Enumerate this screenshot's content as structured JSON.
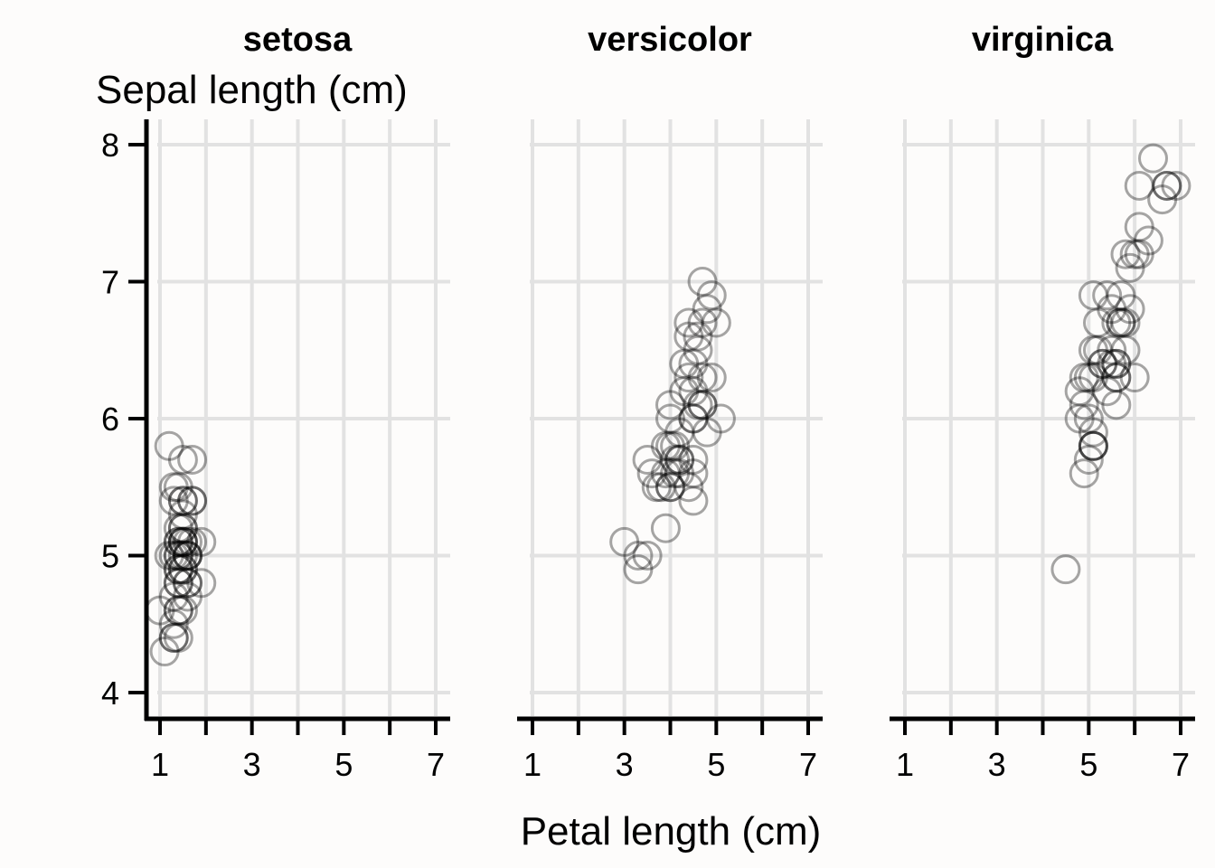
{
  "chart_data": {
    "type": "scatter",
    "facets": [
      "setosa",
      "versicolor",
      "virginica"
    ],
    "xlabel": "Petal length (cm)",
    "ylabel": "Sepal length (cm)",
    "xlim": [
      0.7,
      7.2
    ],
    "ylim": [
      3.83,
      8.2
    ],
    "xticks": [
      1,
      2,
      3,
      4,
      5,
      6,
      7
    ],
    "xtick_labels": [
      "1",
      "",
      "3",
      "",
      "5",
      "",
      "7"
    ],
    "yticks": [
      4,
      5,
      6,
      7,
      8
    ],
    "ytick_labels": [
      "4",
      "5",
      "6",
      "7",
      "8"
    ],
    "grid": true,
    "marker": "open-circle",
    "marker_color": "#000000",
    "series": [
      {
        "name": "setosa",
        "x": [
          1.4,
          1.4,
          1.3,
          1.5,
          1.4,
          1.7,
          1.4,
          1.5,
          1.4,
          1.5,
          1.5,
          1.6,
          1.4,
          1.1,
          1.2,
          1.5,
          1.3,
          1.4,
          1.7,
          1.5,
          1.7,
          1.5,
          1.0,
          1.7,
          1.9,
          1.6,
          1.6,
          1.5,
          1.4,
          1.6,
          1.6,
          1.5,
          1.5,
          1.4,
          1.5,
          1.2,
          1.3,
          1.4,
          1.3,
          1.5,
          1.3,
          1.3,
          1.3,
          1.6,
          1.9,
          1.4,
          1.6,
          1.4,
          1.5,
          1.4
        ],
        "y": [
          5.1,
          4.9,
          4.7,
          4.6,
          5.0,
          5.4,
          4.6,
          5.0,
          4.4,
          4.9,
          5.4,
          4.8,
          4.8,
          4.3,
          5.8,
          5.7,
          5.4,
          5.1,
          5.7,
          5.1,
          5.4,
          5.1,
          4.6,
          5.1,
          4.8,
          5.0,
          5.0,
          5.2,
          5.2,
          4.7,
          4.8,
          5.4,
          5.2,
          5.5,
          4.9,
          5.0,
          5.5,
          4.9,
          4.4,
          5.1,
          5.0,
          4.5,
          4.4,
          5.0,
          5.1,
          4.8,
          5.1,
          4.6,
          5.3,
          5.0
        ]
      },
      {
        "name": "versicolor",
        "x": [
          4.7,
          4.5,
          4.9,
          4.0,
          4.6,
          4.5,
          4.7,
          3.3,
          4.6,
          3.9,
          3.5,
          4.2,
          4.0,
          4.7,
          3.6,
          4.4,
          4.5,
          4.1,
          4.5,
          3.9,
          4.8,
          4.0,
          4.9,
          4.7,
          4.3,
          4.4,
          4.8,
          5.0,
          4.5,
          3.5,
          3.8,
          3.7,
          3.9,
          5.1,
          4.5,
          4.5,
          4.7,
          4.4,
          4.1,
          4.0,
          4.4,
          4.6,
          4.0,
          3.3,
          4.2,
          4.2,
          4.2,
          4.3,
          3.0,
          4.1
        ],
        "y": [
          7.0,
          6.4,
          6.9,
          5.5,
          6.5,
          5.7,
          6.3,
          4.9,
          6.6,
          5.2,
          5.0,
          5.9,
          6.0,
          6.1,
          5.6,
          6.7,
          5.6,
          5.8,
          6.2,
          5.6,
          5.9,
          6.1,
          6.3,
          6.1,
          6.4,
          6.6,
          6.8,
          6.7,
          6.0,
          5.7,
          5.5,
          5.5,
          5.8,
          6.0,
          5.4,
          6.0,
          6.7,
          6.3,
          5.6,
          5.5,
          5.5,
          6.1,
          5.8,
          5.0,
          5.6,
          5.7,
          5.7,
          6.2,
          5.1,
          5.7
        ]
      },
      {
        "name": "virginica",
        "x": [
          6.0,
          5.1,
          5.9,
          5.6,
          5.8,
          6.6,
          4.5,
          6.3,
          5.8,
          6.1,
          5.1,
          5.3,
          5.5,
          5.0,
          5.1,
          5.3,
          5.5,
          6.7,
          6.9,
          5.0,
          5.7,
          4.9,
          6.7,
          4.9,
          5.7,
          6.0,
          4.8,
          4.9,
          5.6,
          5.8,
          6.1,
          6.4,
          5.6,
          5.1,
          5.6,
          6.1,
          5.6,
          5.5,
          4.8,
          5.4,
          5.6,
          5.1,
          5.1,
          5.9,
          5.7,
          5.2,
          5.0,
          5.2,
          5.4,
          5.1
        ],
        "y": [
          6.3,
          5.8,
          7.1,
          6.3,
          6.5,
          7.6,
          4.9,
          7.3,
          6.7,
          7.2,
          6.5,
          6.4,
          6.8,
          5.7,
          5.8,
          6.4,
          6.5,
          7.7,
          7.7,
          6.0,
          6.9,
          5.6,
          7.7,
          6.3,
          6.7,
          7.2,
          6.2,
          6.1,
          6.4,
          7.2,
          7.4,
          7.9,
          6.4,
          6.3,
          6.1,
          7.7,
          6.3,
          6.4,
          6.0,
          6.9,
          6.7,
          6.9,
          5.8,
          6.8,
          6.7,
          6.7,
          6.3,
          6.5,
          6.2,
          5.9
        ]
      }
    ]
  }
}
